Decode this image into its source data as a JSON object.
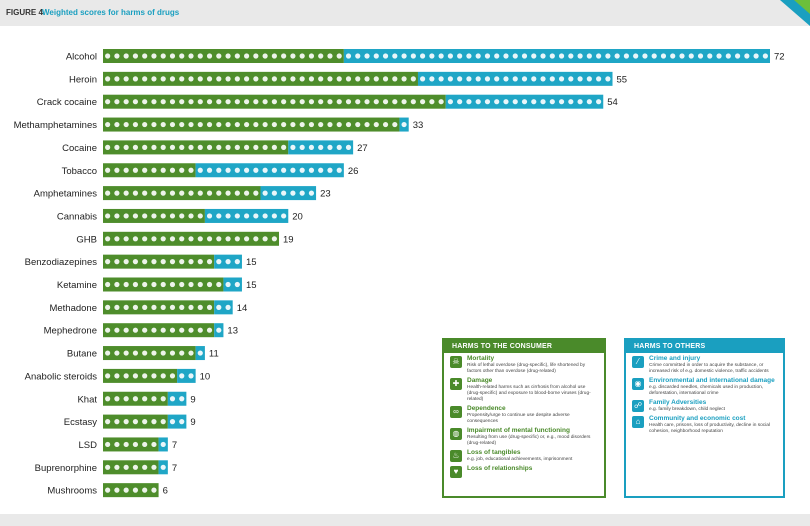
{
  "header": {
    "figure_label": "FIGURE 4",
    "figure_title": "Weighted scores for harms of drugs"
  },
  "colors": {
    "consumer": "#4e8d2b",
    "others": "#1fa6c6",
    "text": "#222222"
  },
  "chart_data": {
    "type": "bar",
    "orientation": "horizontal",
    "stacked": true,
    "title": "Weighted scores for harms of drugs",
    "xlabel": "",
    "ylabel": "",
    "categories": [
      "Alcohol",
      "Heroin",
      "Crack cocaine",
      "Methamphetamines",
      "Cocaine",
      "Tobacco",
      "Amphetamines",
      "Cannabis",
      "GHB",
      "Benzodiazepines",
      "Ketamine",
      "Methadone",
      "Mephedrone",
      "Butane",
      "Anabolic steroids",
      "Khat",
      "Ecstasy",
      "LSD",
      "Buprenorphine",
      "Mushrooms"
    ],
    "totals": [
      72,
      55,
      54,
      33,
      27,
      26,
      23,
      20,
      19,
      15,
      15,
      14,
      13,
      11,
      10,
      9,
      9,
      7,
      7,
      6
    ],
    "series": [
      {
        "name": "Harms to the consumer",
        "values": [
          26,
          34,
          37,
          32,
          20,
          10,
          17,
          11,
          19,
          12,
          13,
          12,
          12,
          10,
          8,
          7,
          7,
          6,
          6,
          6
        ]
      },
      {
        "name": "Harms to others",
        "values": [
          46,
          21,
          17,
          1,
          7,
          16,
          6,
          9,
          0,
          3,
          2,
          2,
          1,
          1,
          2,
          2,
          2,
          1,
          1,
          0
        ]
      }
    ],
    "grid": false,
    "legend": "bottom-right"
  },
  "legend": {
    "consumer": {
      "heading": "HARMS TO THE CONSUMER",
      "items": [
        {
          "icon": "skull-icon",
          "glyph": "☠",
          "name": "Mortality",
          "desc": "Risk of lethal overdose (drug-specific), life shortened by factors other than overdose (drug-related)"
        },
        {
          "icon": "damage-icon",
          "glyph": "✚",
          "name": "Damage",
          "desc": "Health-related harms such as cirrhosis from alcohol use (drug-specific) and exposure to blood-borne viruses (drug-related)"
        },
        {
          "icon": "chain-icon",
          "glyph": "∞",
          "name": "Dependence",
          "desc": "Propensity/urge to continue use despite adverse consequences"
        },
        {
          "icon": "brain-icon",
          "glyph": "◍",
          "name": "Impairment of mental functioning",
          "desc": "Resulting from use (drug-specific) or, e.g., mood disorders (drug-related)"
        },
        {
          "icon": "flame-icon",
          "glyph": "♨",
          "name": "Loss of tangibles",
          "desc": "e.g. job, educational achievements, imprisonment"
        },
        {
          "icon": "broken-heart-icon",
          "glyph": "♥",
          "name": "Loss of relationships",
          "desc": ""
        }
      ]
    },
    "others": {
      "heading": "HARMS TO OTHERS",
      "items": [
        {
          "icon": "knife-icon",
          "glyph": "⁄",
          "name": "Crime and injury",
          "desc": "Crime committed in order to acquire the substance, or increased risk of e.g. domestic violence, traffic accidents"
        },
        {
          "icon": "globe-icon",
          "glyph": "◉",
          "name": "Environmental and international damage",
          "desc": "e.g. discarded needles, chemicals used in production, deforestation, international crime"
        },
        {
          "icon": "family-icon",
          "glyph": "☍",
          "name": "Family Adversities",
          "desc": "e.g. family breakdown, child neglect"
        },
        {
          "icon": "community-icon",
          "glyph": "⌂",
          "name": "Community and economic cost",
          "desc": "Health care, prisons, loss of productivity, decline in social cohesion, neighborhood reputation"
        }
      ]
    }
  }
}
